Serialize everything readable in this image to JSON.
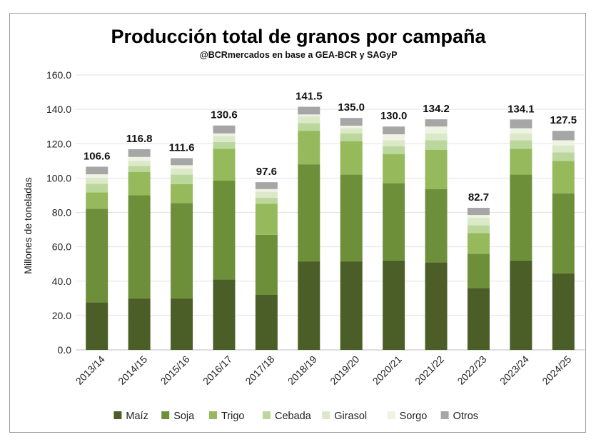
{
  "chart_data": {
    "type": "bar",
    "stacked": true,
    "title": "Producción total de granos por campaña",
    "subtitle": "@BCRmercados en base a GEA-BCR y SAGyP",
    "ylabel": "Millones de toneladas",
    "ylim": [
      0,
      160
    ],
    "yticks": [
      "0.0",
      "20.0",
      "40.0",
      "60.0",
      "80.0",
      "100.0",
      "120.0",
      "140.0",
      "160.0"
    ],
    "grid": true,
    "legend_position": "bottom",
    "categories": [
      "2013/14",
      "2014/15",
      "2015/16",
      "2016/17",
      "2017/18",
      "2018/19",
      "2019/20",
      "2020/21",
      "2021/22",
      "2022/23",
      "2023/24",
      "2024/25"
    ],
    "totals": [
      "106.6",
      "116.8",
      "111.6",
      "130.6",
      "97.6",
      "141.5",
      "135.0",
      "130.0",
      "134.2",
      "82.7",
      "134.1",
      "127.5"
    ],
    "series": [
      {
        "name": "Maíz",
        "color": "#4b5e28",
        "values": [
          27.7,
          30.0,
          30.0,
          41.0,
          32.0,
          51.5,
          51.5,
          52.0,
          51.0,
          36.0,
          52.0,
          44.5
        ]
      },
      {
        "name": "Soja",
        "color": "#6e8f3a",
        "values": [
          54.5,
          60.0,
          55.5,
          57.5,
          35.0,
          56.5,
          50.5,
          45.0,
          42.5,
          20.0,
          50.0,
          46.5
        ]
      },
      {
        "name": "Trigo",
        "color": "#96b95b",
        "values": [
          9.5,
          13.5,
          11.0,
          18.5,
          18.0,
          19.5,
          19.5,
          17.0,
          23.0,
          12.0,
          15.0,
          19.0
        ]
      },
      {
        "name": "Cebada",
        "color": "#bcd79c",
        "values": [
          5.0,
          3.5,
          5.5,
          4.0,
          3.5,
          4.5,
          4.5,
          4.5,
          5.5,
          4.5,
          5.0,
          5.0
        ]
      },
      {
        "name": "Girasol",
        "color": "#dbe9c8",
        "values": [
          3.5,
          3.0,
          3.5,
          3.5,
          3.5,
          4.0,
          3.0,
          3.5,
          4.0,
          4.5,
          4.0,
          4.0
        ]
      },
      {
        "name": "Sorgo",
        "color": "#eef3e4",
        "values": [
          2.0,
          2.3,
          2.0,
          1.5,
          1.6,
          1.0,
          1.5,
          3.5,
          4.0,
          1.5,
          3.0,
          3.0
        ]
      },
      {
        "name": "Otros",
        "color": "#a6a6a6",
        "values": [
          4.4,
          4.5,
          4.1,
          4.6,
          4.0,
          4.5,
          4.5,
          4.5,
          4.2,
          4.2,
          5.1,
          5.5
        ]
      }
    ]
  }
}
